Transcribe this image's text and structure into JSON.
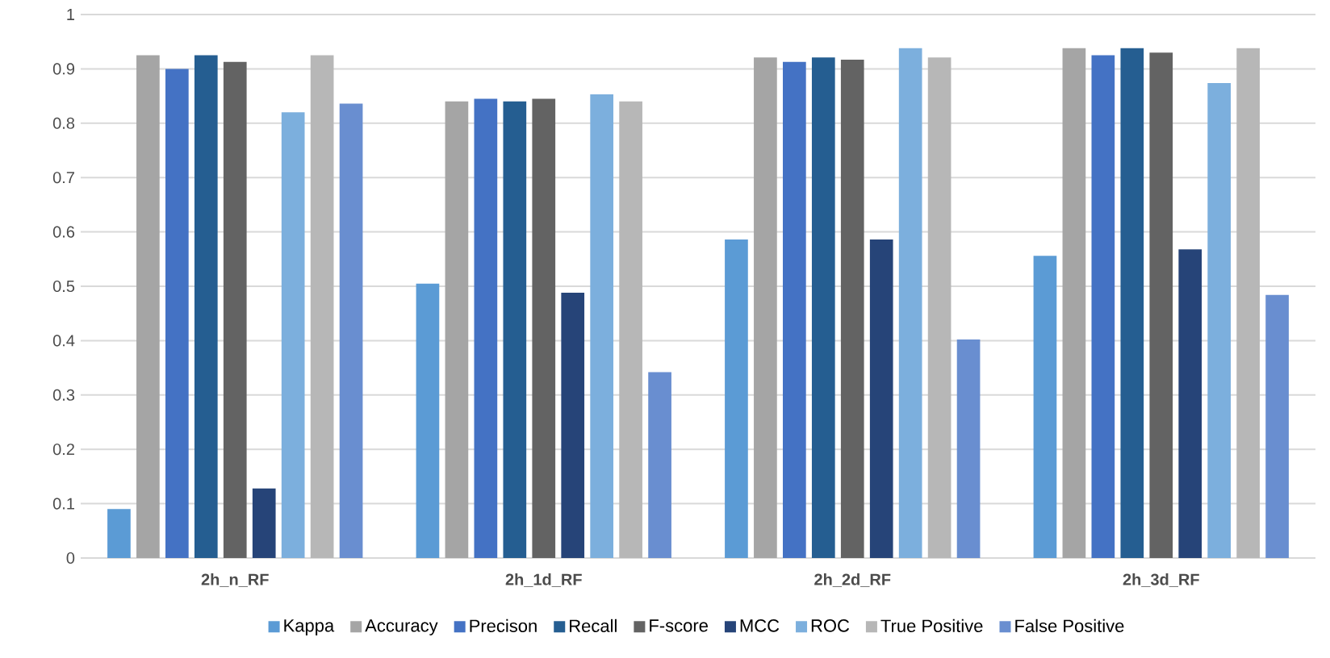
{
  "chart_data": {
    "type": "bar",
    "categories": [
      "2h_n_RF",
      "2h_1d_RF",
      "2h_2d_RF",
      "2h_3d_RF"
    ],
    "series": [
      {
        "name": "Kappa",
        "color": "#5b9bd5",
        "values": [
          0.09,
          0.505,
          0.586,
          0.556
        ]
      },
      {
        "name": "Accuracy",
        "color": "#a5a5a5",
        "values": [
          0.925,
          0.84,
          0.921,
          0.938
        ]
      },
      {
        "name": "Precison",
        "color": "#4472c4",
        "values": [
          0.9,
          0.845,
          0.913,
          0.925
        ]
      },
      {
        "name": "Recall",
        "color": "#255e91",
        "values": [
          0.925,
          0.84,
          0.921,
          0.938
        ]
      },
      {
        "name": "F-score",
        "color": "#636363",
        "values": [
          0.913,
          0.845,
          0.917,
          0.93
        ]
      },
      {
        "name": "MCC",
        "color": "#264478",
        "values": [
          0.128,
          0.488,
          0.586,
          0.568
        ]
      },
      {
        "name": "ROC",
        "color": "#7cafdd",
        "values": [
          0.82,
          0.853,
          0.938,
          0.874
        ]
      },
      {
        "name": "True Positive",
        "color": "#b7b7b7",
        "values": [
          0.925,
          0.84,
          0.921,
          0.938
        ]
      },
      {
        "name": "False Positive",
        "color": "#698ed0",
        "values": [
          0.836,
          0.342,
          0.402,
          0.484
        ]
      }
    ],
    "ylim": [
      0,
      1
    ],
    "yticks": [
      0,
      0.1,
      0.2,
      0.3,
      0.4,
      0.5,
      0.6,
      0.7,
      0.8,
      0.9,
      1
    ],
    "grid": "y",
    "legend": "bottom"
  }
}
